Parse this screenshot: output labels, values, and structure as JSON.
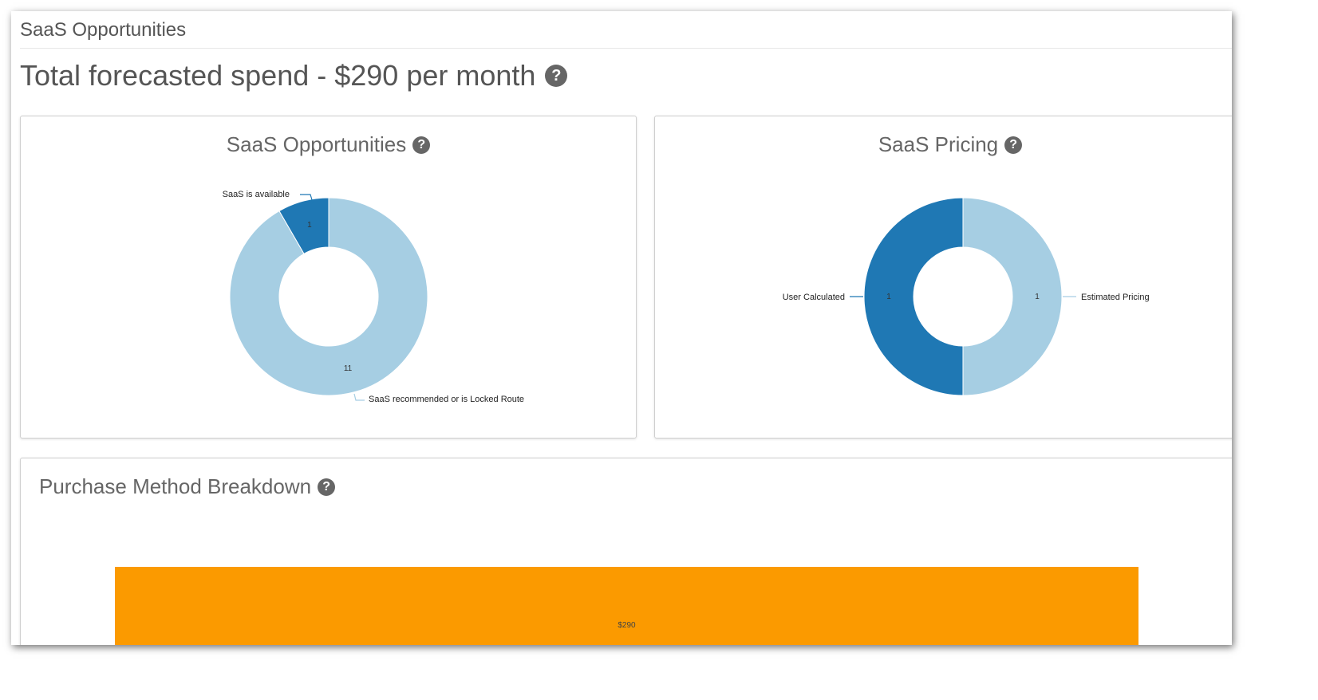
{
  "page": {
    "header": "SaaS Opportunities",
    "total_title": "Total forecasted spend - $290 per month",
    "help_glyph": "?"
  },
  "colors": {
    "dark_blue": "#1f78b4",
    "light_blue": "#a6cee3",
    "orange": "#fb9a00"
  },
  "chart_data": [
    {
      "type": "pie",
      "title": "SaaS Opportunities",
      "donut": true,
      "slices": [
        {
          "label": "SaaS is available",
          "value": 1,
          "color": "#1f78b4"
        },
        {
          "label": "SaaS recommended or is Locked Route",
          "value": 11,
          "color": "#a6cee3"
        }
      ]
    },
    {
      "type": "pie",
      "title": "SaaS Pricing",
      "donut": true,
      "slices": [
        {
          "label": "Estimated Pricing",
          "value": 1,
          "color": "#a6cee3"
        },
        {
          "label": "User Calculated",
          "value": 1,
          "color": "#1f78b4"
        }
      ]
    },
    {
      "type": "bar",
      "title": "Purchase Method Breakdown",
      "categories": [
        ""
      ],
      "values": [
        290
      ],
      "value_labels": [
        "$290"
      ],
      "color": "#fb9a00"
    }
  ]
}
